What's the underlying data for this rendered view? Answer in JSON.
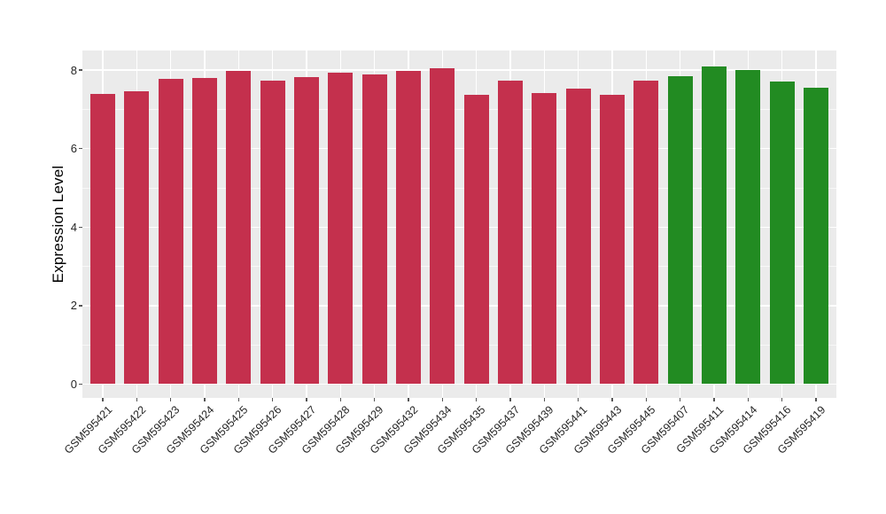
{
  "figure": {
    "background": "#FFFFFF",
    "panel_background": "#EBEBEB",
    "grid_color": "#FFFFFF",
    "axis_tick_color": "#555555",
    "axis_text_color": "#262626",
    "axis_title_color": "#000000"
  },
  "chart_data": {
    "type": "bar",
    "title": "",
    "xlabel": "",
    "ylabel": "Expression Level",
    "ylim": [
      0,
      8.5
    ],
    "yticks": [
      0,
      2,
      4,
      6,
      8
    ],
    "yticks_minor": [
      1,
      3,
      5,
      7
    ],
    "grid": true,
    "legend": false,
    "bar_color_red": "#C4304D",
    "bar_color_green": "#228B22",
    "categories": [
      "GSM595421",
      "GSM595422",
      "GSM595423",
      "GSM595424",
      "GSM595425",
      "GSM595426",
      "GSM595427",
      "GSM595428",
      "GSM595429",
      "GSM595432",
      "GSM595434",
      "GSM595435",
      "GSM595437",
      "GSM595439",
      "GSM595441",
      "GSM595443",
      "GSM595445",
      "GSM595407",
      "GSM595411",
      "GSM595414",
      "GSM595416",
      "GSM595419"
    ],
    "values": [
      7.39,
      7.47,
      7.77,
      7.81,
      7.97,
      7.73,
      7.83,
      7.93,
      7.88,
      7.98,
      8.05,
      7.38,
      7.73,
      7.42,
      7.53,
      7.37,
      7.73,
      7.84,
      8.09,
      8.01,
      7.7,
      7.56
    ],
    "colors": [
      "#C4304D",
      "#C4304D",
      "#C4304D",
      "#C4304D",
      "#C4304D",
      "#C4304D",
      "#C4304D",
      "#C4304D",
      "#C4304D",
      "#C4304D",
      "#C4304D",
      "#C4304D",
      "#C4304D",
      "#C4304D",
      "#C4304D",
      "#C4304D",
      "#C4304D",
      "#228B22",
      "#228B22",
      "#228B22",
      "#228B22",
      "#228B22"
    ]
  }
}
